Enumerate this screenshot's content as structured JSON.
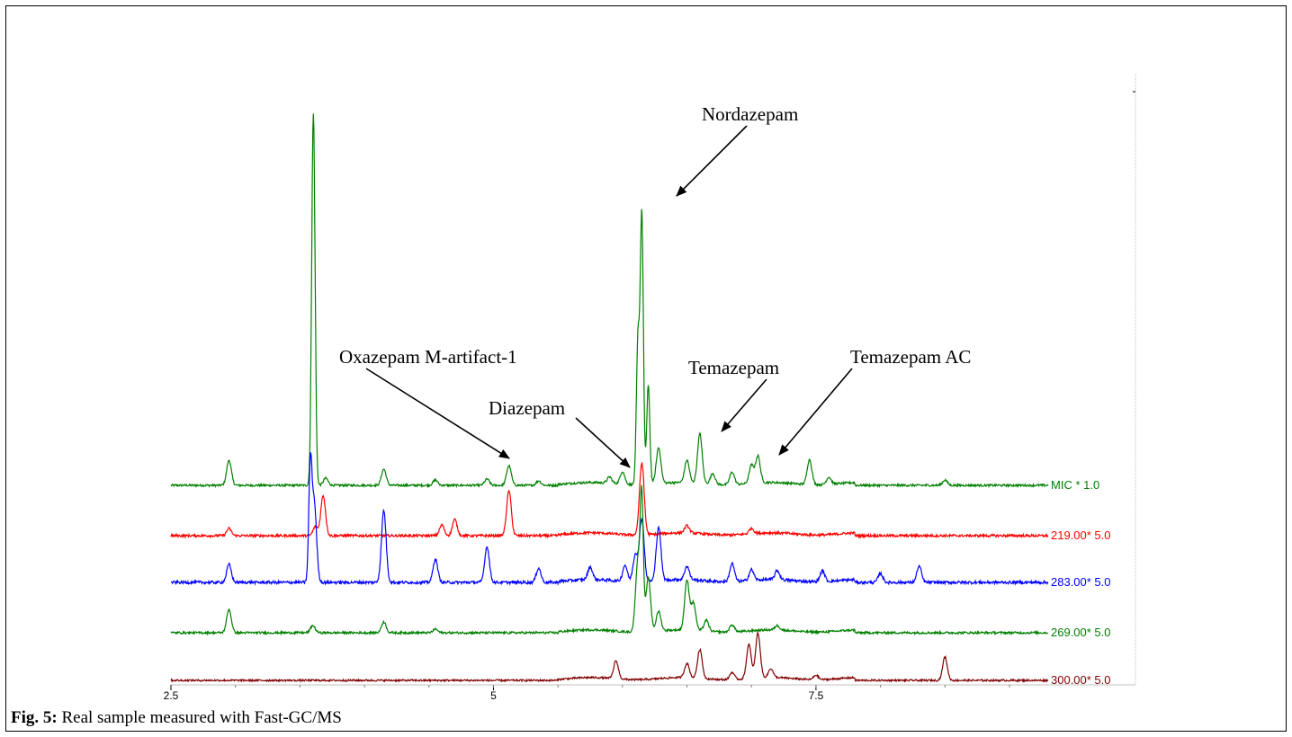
{
  "caption": {
    "prefix": "Fig. 5:",
    "text": " Real sample measured with Fast-GC/MS"
  },
  "chart_data": {
    "type": "line",
    "title": "",
    "xlabel": "",
    "ylabel": "",
    "xlim": [
      2.5,
      9.3
    ],
    "x_ticks": [
      {
        "value": 2.5,
        "label": "2.5"
      },
      {
        "value": 5,
        "label": "5"
      },
      {
        "value": 7.5,
        "label": "7.5"
      }
    ],
    "grid": false,
    "series": [
      {
        "name": "MIC * 1.0",
        "color": "#008000",
        "noise": 1.2,
        "peaks": [
          [
            2.95,
            28
          ],
          [
            3.6,
            260
          ],
          [
            3.61,
            190
          ],
          [
            3.7,
            8
          ],
          [
            4.15,
            18
          ],
          [
            4.55,
            6
          ],
          [
            4.95,
            7
          ],
          [
            5.12,
            22
          ],
          [
            5.35,
            5
          ],
          [
            5.9,
            7
          ],
          [
            6.0,
            14
          ],
          [
            6.12,
            160
          ],
          [
            6.15,
            300
          ],
          [
            6.2,
            110
          ],
          [
            6.28,
            40
          ],
          [
            6.5,
            25
          ],
          [
            6.6,
            55
          ],
          [
            6.7,
            12
          ],
          [
            6.85,
            14
          ],
          [
            7.0,
            20
          ],
          [
            7.05,
            30
          ],
          [
            7.45,
            28
          ],
          [
            7.6,
            8
          ],
          [
            8.5,
            6
          ]
        ]
      },
      {
        "name": "219.00* 5.0",
        "color": "#ff0000",
        "noise": 1.4,
        "peaks": [
          [
            2.95,
            8
          ],
          [
            3.68,
            45
          ],
          [
            3.62,
            10
          ],
          [
            4.6,
            12
          ],
          [
            4.7,
            18
          ],
          [
            5.12,
            50
          ],
          [
            6.15,
            80
          ],
          [
            6.5,
            8
          ],
          [
            7.0,
            6
          ]
        ]
      },
      {
        "name": "283.00* 5.0",
        "color": "#0000ff",
        "noise": 1.6,
        "peaks": [
          [
            2.95,
            20
          ],
          [
            3.58,
            120
          ],
          [
            3.61,
            90
          ],
          [
            4.15,
            80
          ],
          [
            4.55,
            26
          ],
          [
            4.95,
            40
          ],
          [
            5.35,
            16
          ],
          [
            5.75,
            14
          ],
          [
            6.02,
            18
          ],
          [
            6.1,
            30
          ],
          [
            6.15,
            70
          ],
          [
            6.28,
            60
          ],
          [
            6.5,
            15
          ],
          [
            6.85,
            20
          ],
          [
            7.0,
            12
          ],
          [
            7.2,
            10
          ],
          [
            7.55,
            12
          ],
          [
            8.0,
            10
          ],
          [
            8.3,
            18
          ]
        ]
      },
      {
        "name": "269.00* 5.0",
        "color": "#008000",
        "noise": 1.2,
        "peaks": [
          [
            2.95,
            26
          ],
          [
            3.6,
            8
          ],
          [
            4.15,
            12
          ],
          [
            4.55,
            4
          ],
          [
            6.12,
            80
          ],
          [
            6.15,
            140
          ],
          [
            6.2,
            60
          ],
          [
            6.28,
            22
          ],
          [
            6.5,
            55
          ],
          [
            6.55,
            30
          ],
          [
            6.65,
            12
          ],
          [
            6.85,
            8
          ],
          [
            7.2,
            5
          ]
        ]
      },
      {
        "name": "300.00* 5.0",
        "color": "#800000",
        "noise": 1.0,
        "peaks": [
          [
            5.95,
            20
          ],
          [
            6.5,
            16
          ],
          [
            6.6,
            32
          ],
          [
            6.85,
            8
          ],
          [
            6.98,
            38
          ],
          [
            7.05,
            50
          ],
          [
            7.15,
            10
          ],
          [
            7.5,
            5
          ],
          [
            8.5,
            26
          ]
        ]
      }
    ],
    "annotations": [
      {
        "text": "Nordazepam",
        "target_x": 6.17,
        "target_series": 0
      },
      {
        "text": "Oxazepam M-artifact-1",
        "target_x": 5.12,
        "target_series": 0
      },
      {
        "text": "Diazepam",
        "target_x": 6.0,
        "target_series": 0
      },
      {
        "text": "Temazepam",
        "target_x": 6.6,
        "target_series": 0
      },
      {
        "text": "Temazepam AC",
        "target_x": 7.05,
        "target_series": 0
      }
    ]
  }
}
